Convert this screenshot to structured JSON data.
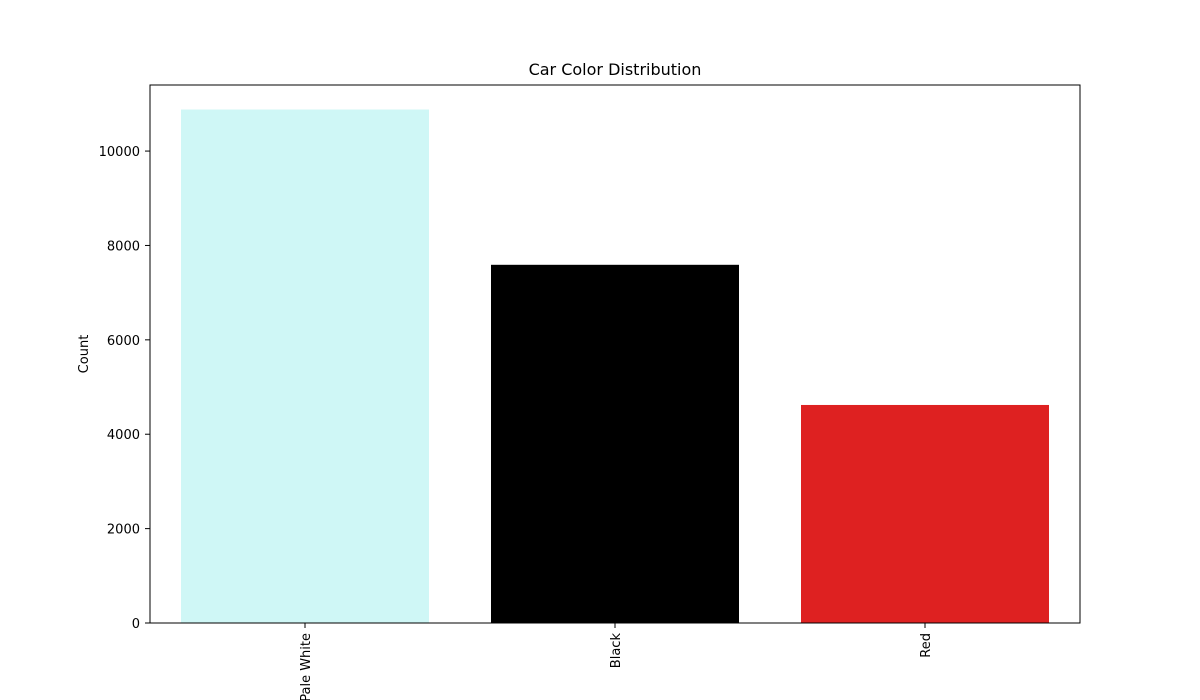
{
  "chart_data": {
    "type": "bar",
    "title": "Car Color Distribution",
    "xlabel": "",
    "ylabel": "Count",
    "categories": [
      "Pale White",
      "Black",
      "Red"
    ],
    "values": [
      10880,
      7590,
      4620
    ],
    "colors": [
      "#cff7f6",
      "#000000",
      "#de2121"
    ],
    "ylim": [
      0,
      11400
    ],
    "yticks": [
      0,
      2000,
      4000,
      6000,
      8000,
      10000
    ],
    "ytick_labels": [
      "0",
      "2000",
      "4000",
      "6000",
      "8000",
      "10000"
    ],
    "xtick_rotation": "vertical",
    "grid": false,
    "legend": "none"
  }
}
